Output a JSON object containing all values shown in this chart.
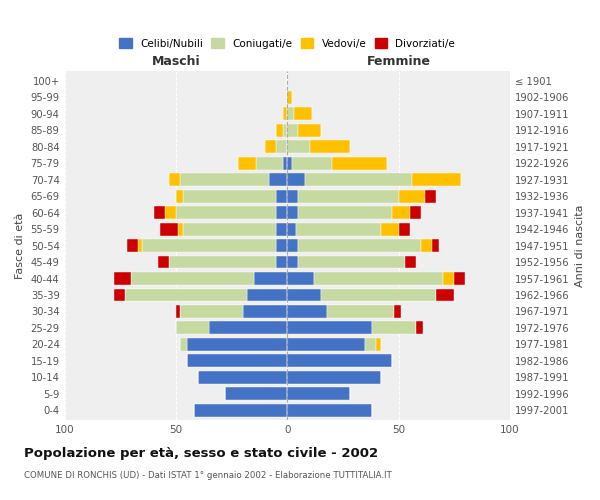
{
  "age_groups": [
    "0-4",
    "5-9",
    "10-14",
    "15-19",
    "20-24",
    "25-29",
    "30-34",
    "35-39",
    "40-44",
    "45-49",
    "50-54",
    "55-59",
    "60-64",
    "65-69",
    "70-74",
    "75-79",
    "80-84",
    "85-89",
    "90-94",
    "95-99",
    "100+"
  ],
  "birth_years": [
    "1997-2001",
    "1992-1996",
    "1987-1991",
    "1982-1986",
    "1977-1981",
    "1972-1976",
    "1967-1971",
    "1962-1966",
    "1957-1961",
    "1952-1956",
    "1947-1951",
    "1942-1946",
    "1937-1941",
    "1932-1936",
    "1927-1931",
    "1922-1926",
    "1917-1921",
    "1912-1916",
    "1907-1911",
    "1902-1906",
    "≤ 1901"
  ],
  "colors": {
    "celibi": "#4472c4",
    "coniugati": "#c5d9a0",
    "vedovi": "#ffc000",
    "divorziati": "#cc0000"
  },
  "m_celibi": [
    42,
    28,
    40,
    45,
    45,
    35,
    20,
    18,
    15,
    5,
    5,
    5,
    5,
    5,
    8,
    2,
    0,
    0,
    0,
    0,
    0
  ],
  "m_coniugati": [
    0,
    0,
    0,
    0,
    3,
    15,
    28,
    55,
    55,
    48,
    60,
    42,
    45,
    42,
    40,
    12,
    5,
    2,
    0,
    0,
    0
  ],
  "m_vedovi": [
    0,
    0,
    0,
    0,
    0,
    0,
    0,
    0,
    0,
    0,
    2,
    2,
    5,
    3,
    5,
    8,
    5,
    3,
    2,
    0,
    0
  ],
  "m_divorziati": [
    0,
    0,
    0,
    0,
    0,
    0,
    2,
    5,
    8,
    5,
    5,
    8,
    5,
    0,
    0,
    0,
    0,
    0,
    0,
    0,
    0
  ],
  "f_celibi": [
    38,
    28,
    42,
    47,
    35,
    38,
    18,
    15,
    12,
    5,
    5,
    4,
    5,
    5,
    8,
    2,
    0,
    0,
    0,
    0,
    0
  ],
  "f_coniugati": [
    0,
    0,
    0,
    0,
    5,
    20,
    30,
    52,
    58,
    48,
    55,
    38,
    42,
    45,
    48,
    18,
    10,
    5,
    3,
    0,
    0
  ],
  "f_vedovi": [
    0,
    0,
    0,
    0,
    2,
    0,
    0,
    0,
    5,
    0,
    5,
    8,
    8,
    12,
    22,
    25,
    18,
    10,
    8,
    2,
    0
  ],
  "f_divorziati": [
    0,
    0,
    0,
    0,
    0,
    3,
    3,
    8,
    5,
    5,
    3,
    5,
    5,
    5,
    0,
    0,
    0,
    0,
    0,
    0,
    0
  ],
  "xlim": 100,
  "title": "Popolazione per età, sesso e stato civile - 2002",
  "subtitle": "COMUNE DI RONCHIS (UD) - Dati ISTAT 1° gennaio 2002 - Elaborazione TUTTITALIA.IT",
  "ylabel_left": "Fasce di età",
  "ylabel_right": "Anni di nascita",
  "xlabel_left": "Maschi",
  "xlabel_right": "Femmine"
}
